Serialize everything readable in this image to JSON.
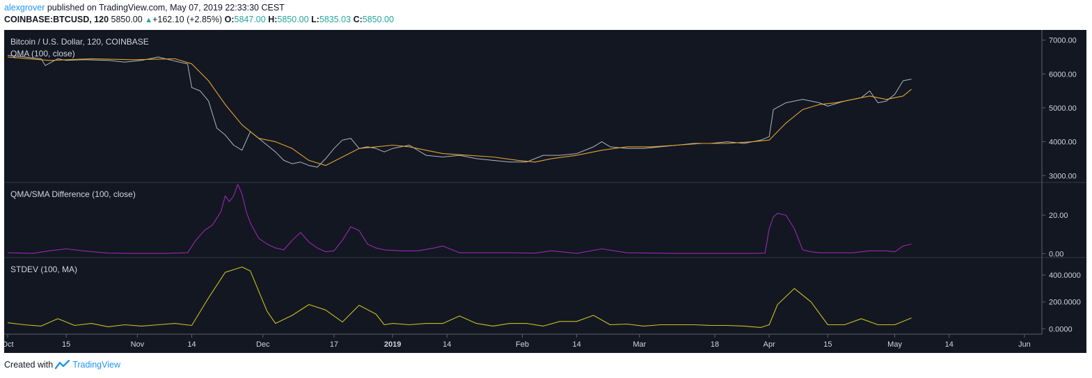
{
  "header": {
    "author": "alexgrover",
    "published_text": "published on TradingView.com, May 07, 2019 22:33:30 CEST",
    "symbol": "COINBASE:BTCUSD, 120",
    "last": "5850.00",
    "change": "+162.10 (+2.85%)",
    "open_label": "O:",
    "open": "5847.00",
    "high_label": "H:",
    "high": "5850.00",
    "low_label": "L:",
    "low": "5835.03",
    "close_label": "C:",
    "close": "5850.00"
  },
  "footer": {
    "created_with": "Created with",
    "brand": "TradingView"
  },
  "colors": {
    "background": "#131722",
    "price": "#b2b5be",
    "qma": "#e3a530",
    "difference": "#9c27b0",
    "stdev": "#c8c020",
    "text": "#d1d4dc"
  },
  "chart_data": [
    {
      "type": "line",
      "title": "Bitcoin / U.S. Dollar, 120, COINBASE",
      "subtitle": "QMA (100, close)",
      "ylim": [
        2800,
        7300
      ],
      "y_ticks": [
        "3000.00",
        "4000.00",
        "5000.00",
        "6000.00",
        "7000.00"
      ],
      "y_tick_values": [
        3000,
        4000,
        5000,
        6000,
        7000
      ],
      "x_ticks": [
        "Oct",
        "15",
        "Nov",
        "14",
        "Dec",
        "17",
        "2019",
        "14",
        "Feb",
        "14",
        "Mar",
        "18",
        "Apr",
        "15",
        "May",
        "14",
        "Jun"
      ],
      "x_tick_days": [
        0,
        14,
        31,
        44,
        61,
        78,
        92,
        105,
        123,
        136,
        151,
        169,
        182,
        196,
        212,
        225,
        243
      ],
      "x_start": "2018-10-01",
      "series": [
        {
          "name": "BTCUSD",
          "x": [
            0,
            4,
            8,
            9,
            12,
            14,
            18,
            24,
            28,
            32,
            36,
            40,
            43,
            44,
            46,
            48,
            49,
            50,
            52,
            54,
            56,
            58,
            60,
            62,
            64,
            66,
            68,
            70,
            72,
            74,
            76,
            78,
            80,
            82,
            84,
            86,
            88,
            90,
            92,
            96,
            100,
            104,
            108,
            112,
            116,
            120,
            124,
            128,
            132,
            136,
            140,
            142,
            144,
            148,
            152,
            156,
            160,
            164,
            168,
            172,
            176,
            180,
            182,
            183,
            186,
            190,
            194,
            196,
            200,
            204,
            206,
            208,
            210,
            212,
            214,
            216
          ],
          "values": [
            6550,
            6500,
            6450,
            6250,
            6450,
            6400,
            6420,
            6400,
            6350,
            6400,
            6500,
            6380,
            6300,
            5600,
            5500,
            5200,
            4800,
            4400,
            4200,
            3900,
            3750,
            4300,
            4100,
            3900,
            3700,
            3450,
            3350,
            3400,
            3300,
            3250,
            3500,
            3800,
            4050,
            4100,
            3800,
            3850,
            3800,
            3700,
            3800,
            3900,
            3600,
            3550,
            3600,
            3500,
            3450,
            3400,
            3400,
            3600,
            3600,
            3650,
            3850,
            4000,
            3850,
            3800,
            3800,
            3850,
            3900,
            3950,
            3950,
            4000,
            3950,
            4050,
            4150,
            4950,
            5150,
            5250,
            5150,
            5050,
            5200,
            5300,
            5500,
            5150,
            5200,
            5400,
            5800,
            5850
          ]
        },
        {
          "name": "QMA",
          "x": [
            0,
            10,
            20,
            30,
            40,
            44,
            48,
            52,
            56,
            60,
            64,
            68,
            72,
            76,
            80,
            84,
            88,
            92,
            96,
            100,
            104,
            110,
            116,
            122,
            126,
            130,
            136,
            142,
            148,
            154,
            160,
            166,
            172,
            178,
            182,
            186,
            190,
            194,
            198,
            202,
            206,
            210,
            214,
            216
          ],
          "values": [
            6500,
            6400,
            6450,
            6420,
            6450,
            6300,
            5800,
            5100,
            4500,
            4100,
            4000,
            3800,
            3450,
            3300,
            3550,
            3800,
            3850,
            3900,
            3850,
            3750,
            3650,
            3600,
            3550,
            3450,
            3400,
            3500,
            3600,
            3750,
            3850,
            3850,
            3900,
            3950,
            3950,
            4000,
            4050,
            4550,
            4950,
            5100,
            5150,
            5250,
            5350,
            5250,
            5350,
            5550
          ]
        }
      ]
    },
    {
      "type": "line",
      "title": "QMA/SMA Difference (100, close)",
      "ylim": [
        -2,
        37
      ],
      "y_ticks": [
        "0.00",
        "20.00"
      ],
      "y_tick_values": [
        0,
        20
      ],
      "series": [
        {
          "name": "QMA/SMA Difference",
          "x": [
            0,
            6,
            10,
            14,
            18,
            24,
            30,
            38,
            43,
            45,
            47,
            49,
            51,
            52,
            53,
            54,
            55,
            56,
            57,
            58,
            60,
            62,
            64,
            66,
            68,
            70,
            72,
            74,
            76,
            78,
            80,
            82,
            84,
            86,
            88,
            90,
            94,
            98,
            102,
            104,
            108,
            114,
            120,
            126,
            130,
            136,
            142,
            148,
            154,
            160,
            166,
            172,
            178,
            181,
            182,
            183,
            184,
            186,
            188,
            190,
            192,
            194,
            198,
            202,
            206,
            210,
            212,
            214,
            216
          ],
          "values": [
            0.5,
            0.2,
            1.5,
            2.5,
            1.5,
            0.3,
            0.2,
            0.2,
            0.5,
            7,
            12,
            15,
            22,
            30,
            27,
            30,
            36,
            31,
            22,
            16,
            8,
            5,
            3,
            2,
            7,
            11,
            6,
            3,
            1,
            1.5,
            7,
            14,
            12,
            5,
            3,
            2,
            1.5,
            1.5,
            3,
            4,
            0.5,
            0.5,
            0.5,
            0.3,
            1.5,
            0.2,
            2.5,
            0.5,
            0.3,
            0.2,
            0.2,
            0.2,
            0.2,
            0.3,
            13,
            19,
            21,
            20,
            13,
            2,
            1,
            0.5,
            0.5,
            0.5,
            1.5,
            1.5,
            1,
            4,
            5
          ]
        }
      ]
    },
    {
      "type": "line",
      "title": "STDEV (100, MA)",
      "ylim": [
        -40,
        530
      ],
      "y_ticks": [
        "0.0000",
        "200.0000",
        "400.0000"
      ],
      "y_tick_values": [
        0,
        200,
        400
      ],
      "series": [
        {
          "name": "STDEV",
          "x": [
            0,
            4,
            8,
            12,
            16,
            20,
            24,
            28,
            32,
            36,
            40,
            44,
            48,
            52,
            56,
            58,
            60,
            62,
            64,
            68,
            72,
            76,
            80,
            84,
            88,
            90,
            92,
            96,
            100,
            104,
            108,
            112,
            116,
            120,
            124,
            128,
            132,
            136,
            140,
            144,
            148,
            152,
            156,
            160,
            164,
            168,
            172,
            176,
            180,
            182,
            184,
            188,
            192,
            196,
            200,
            204,
            208,
            212,
            216
          ],
          "values": [
            45,
            30,
            20,
            75,
            25,
            40,
            15,
            30,
            20,
            30,
            40,
            25,
            230,
            420,
            460,
            430,
            280,
            130,
            40,
            100,
            180,
            140,
            50,
            175,
            110,
            30,
            40,
            30,
            40,
            40,
            95,
            40,
            20,
            40,
            40,
            20,
            55,
            55,
            100,
            30,
            35,
            20,
            30,
            30,
            30,
            25,
            25,
            20,
            10,
            30,
            180,
            300,
            200,
            30,
            30,
            75,
            30,
            30,
            80
          ]
        }
      ]
    }
  ]
}
